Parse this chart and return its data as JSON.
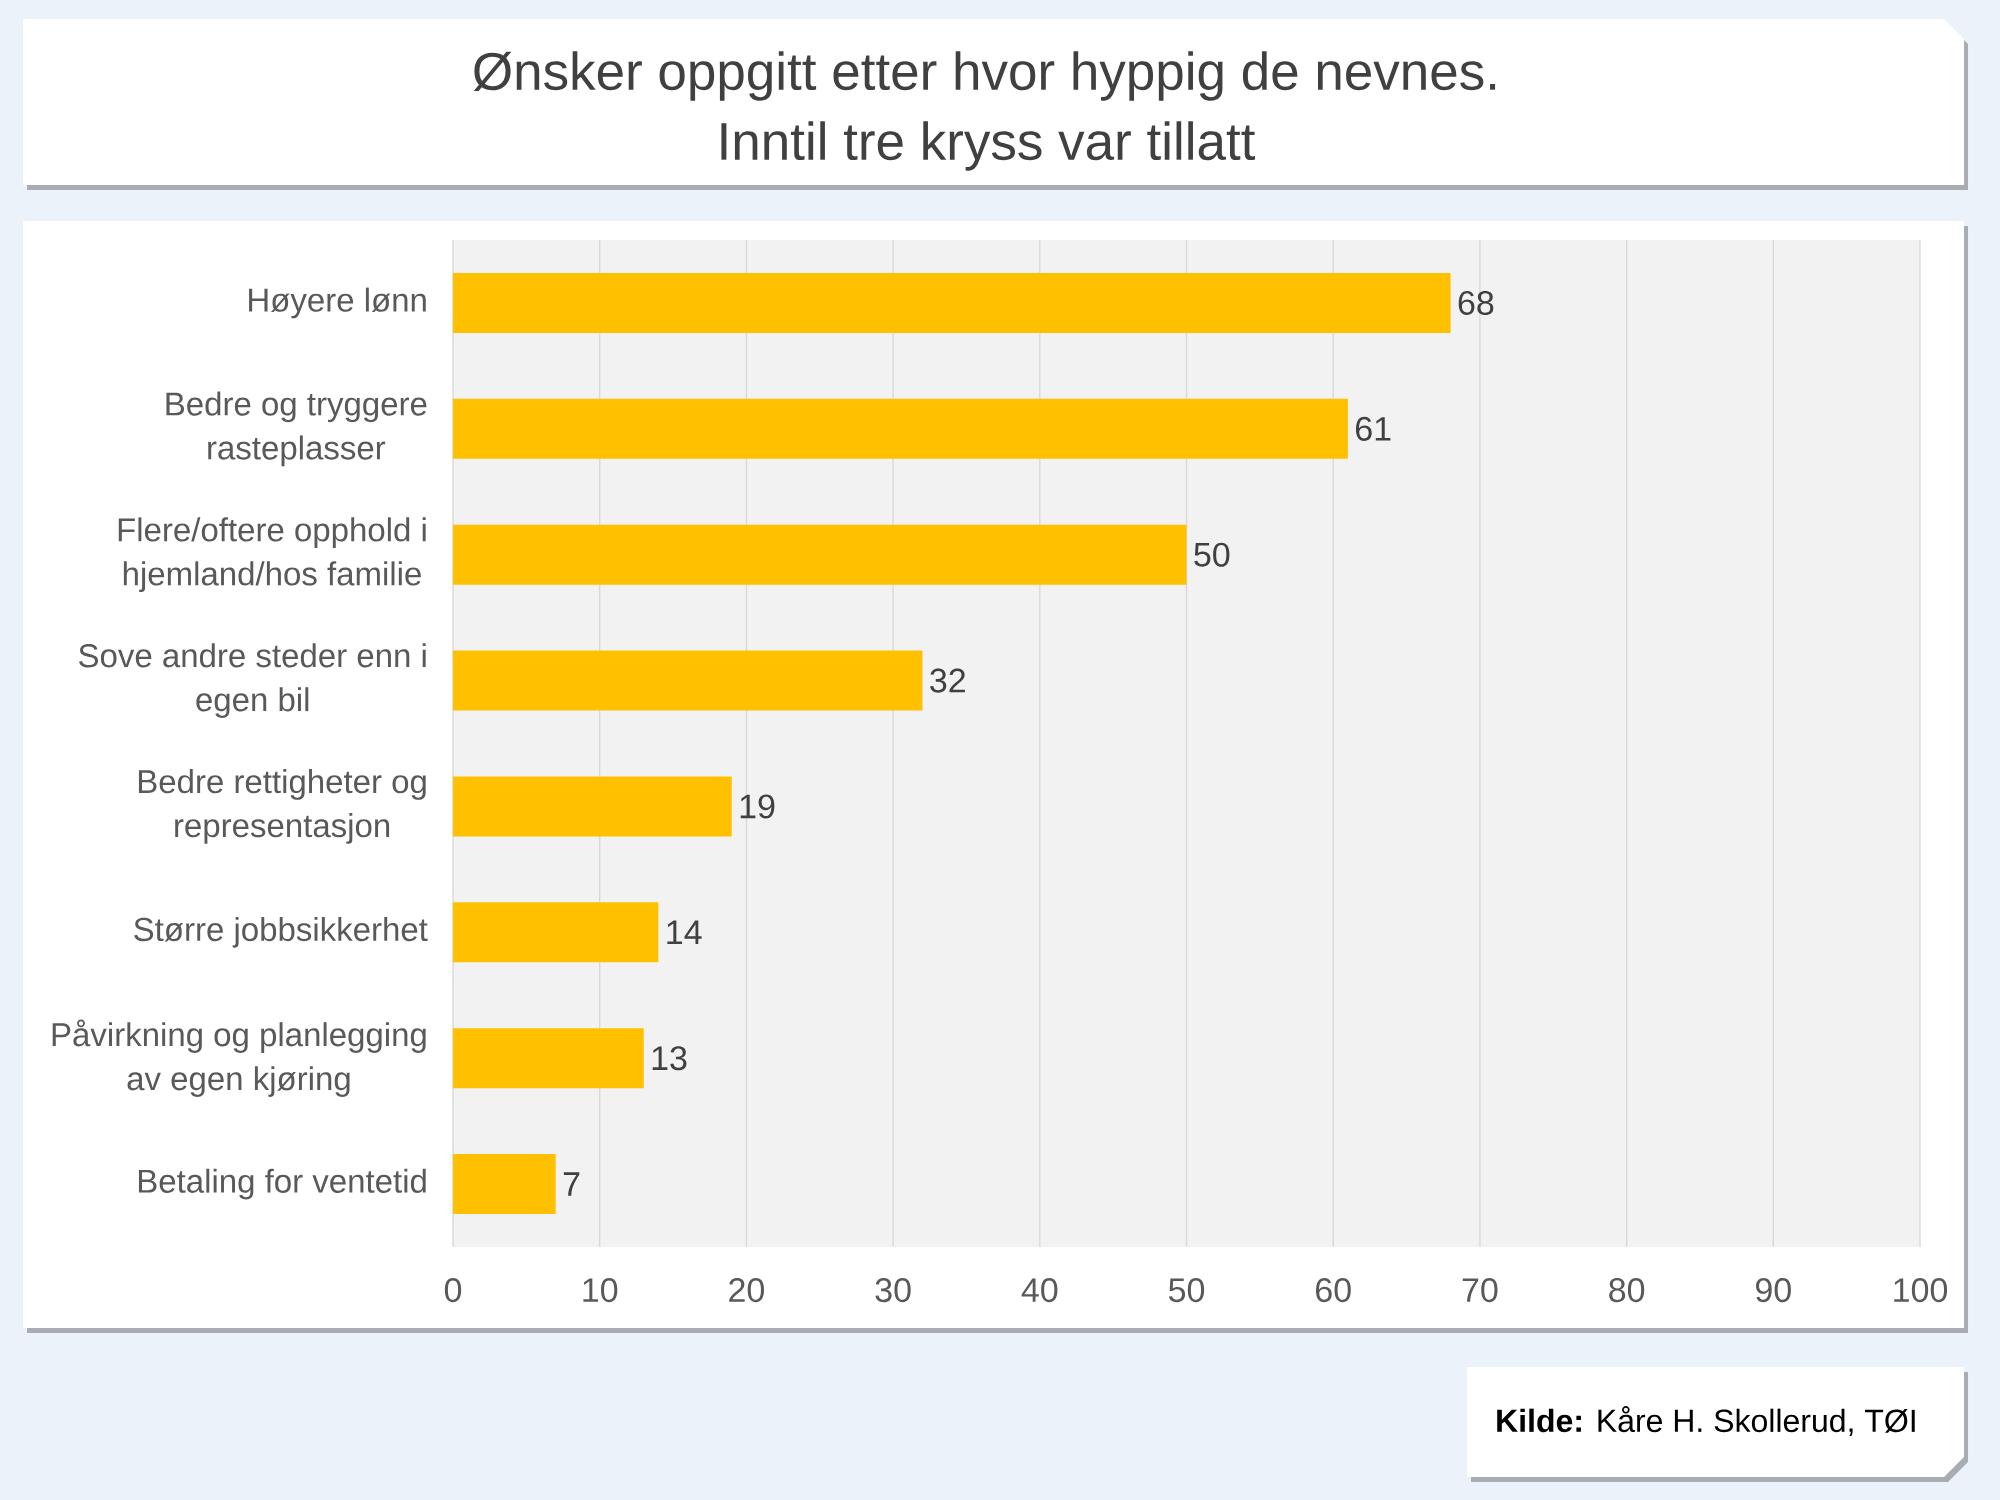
{
  "chart_data": {
    "type": "bar",
    "orientation": "horizontal",
    "title": "Ønsker oppgitt etter hvor hyppig de nevnes.",
    "subtitle": "Inntil tre kryss var tillatt",
    "categories": [
      "Høyere lønn",
      "Bedre og tryggere rasteplasser",
      "Flere/oftere opphold i hjemland/hos familie",
      "Sove andre steder enn i egen bil",
      "Bedre rettigheter og representasjon",
      "Større jobbsikkerhet",
      "Påvirkning og planlegging av egen kjøring",
      "Betaling for ventetid"
    ],
    "values": [
      68,
      61,
      50,
      32,
      19,
      14,
      13,
      7
    ],
    "color": "#ffc000",
    "xlim": [
      0,
      100
    ],
    "xticks": [
      0,
      10,
      20,
      30,
      40,
      50,
      60,
      70,
      80,
      90,
      100
    ],
    "grid": "x",
    "data_labels": true,
    "annotations": [
      "**Kilde:** Kåre H. Skollerud, TØI"
    ]
  }
}
